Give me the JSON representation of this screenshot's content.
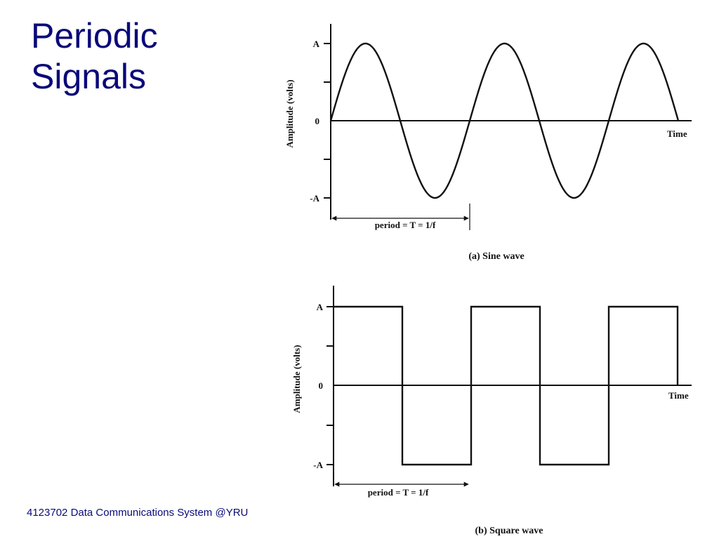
{
  "slide": {
    "title_line1": "Periodic",
    "title_line2": "Signals",
    "footer": "4123702 Data Communications System @YRU",
    "colors": {
      "title": "#0a0a78",
      "figure": "#111111",
      "background": "#ffffff"
    }
  },
  "figures": [
    {
      "id": "sine",
      "caption": "(a) Sine wave",
      "ylabel": "Amplitude (volts)",
      "xlabel": "Time",
      "tick_labels": {
        "top": "A",
        "zero": "0",
        "bottom": "-A"
      },
      "period_label": "period = T = 1/f",
      "wave_type": "sine",
      "cycles": 2.5
    },
    {
      "id": "square",
      "caption": "(b) Square wave",
      "ylabel": "Amplitude (volts)",
      "xlabel": "Time",
      "tick_labels": {
        "top": "A",
        "zero": "0",
        "bottom": "-A"
      },
      "period_label": "period = T = 1/f",
      "wave_type": "square",
      "cycles": 2.5
    }
  ]
}
